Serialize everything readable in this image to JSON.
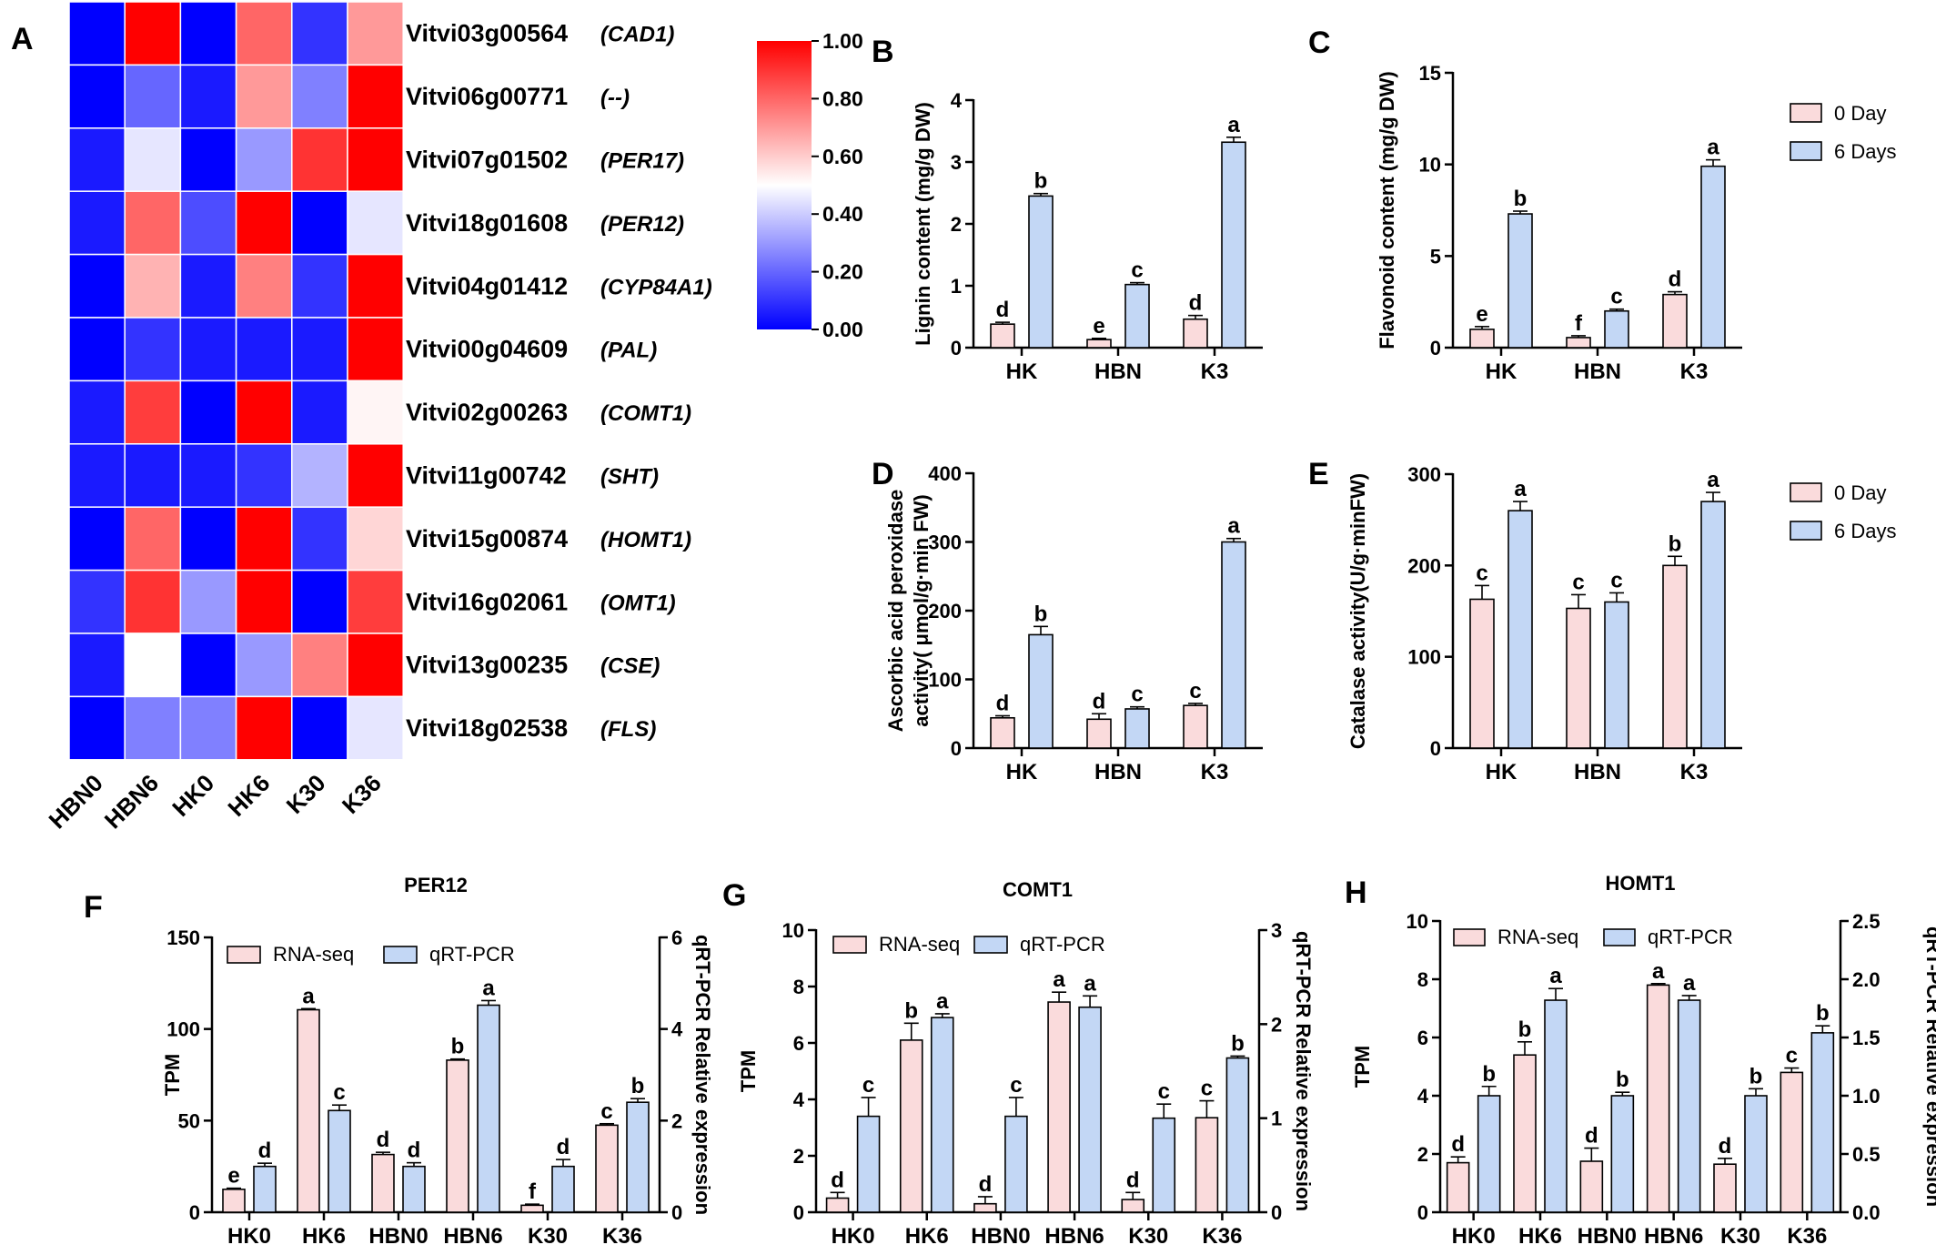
{
  "colors": {
    "low": "#0000ff",
    "mid": "#ffffff",
    "high": "#ff0000",
    "bar_0day": "#fadbdc",
    "bar_6days": "#c3d7f5",
    "bar_rnaseq": "#fadbdc",
    "bar_qrtpcr": "#c3d7f5"
  },
  "chart_data": [
    {
      "id": "A",
      "type": "heatmap",
      "letter": "A",
      "columns": [
        "HBN0",
        "HBN6",
        "HK0",
        "HK6",
        "K30",
        "K36"
      ],
      "rows": [
        {
          "gene": "Vitvi03g00564",
          "annotation": "(CAD1)",
          "values": [
            0.0,
            1.0,
            0.0,
            0.8,
            0.1,
            0.7
          ]
        },
        {
          "gene": "Vitvi06g00771",
          "annotation": "(--)",
          "values": [
            0.0,
            0.2,
            0.05,
            0.7,
            0.25,
            1.0
          ]
        },
        {
          "gene": "Vitvi07g01502",
          "annotation": "(PER17)",
          "values": [
            0.05,
            0.45,
            0.0,
            0.3,
            0.9,
            1.0
          ]
        },
        {
          "gene": "Vitvi18g01608",
          "annotation": "(PER12)",
          "values": [
            0.05,
            0.8,
            0.15,
            1.0,
            0.0,
            0.45
          ]
        },
        {
          "gene": "Vitvi04g01412",
          "annotation": "(CYP84A1)",
          "values": [
            0.0,
            0.65,
            0.05,
            0.75,
            0.1,
            1.0
          ]
        },
        {
          "gene": "Vitvi00g04609",
          "annotation": "(PAL)",
          "values": [
            0.0,
            0.1,
            0.05,
            0.05,
            0.05,
            1.0
          ]
        },
        {
          "gene": "Vitvi02g00263",
          "annotation": "(COMT1)",
          "values": [
            0.05,
            0.88,
            0.0,
            1.0,
            0.05,
            0.52
          ]
        },
        {
          "gene": "Vitvi11g00742",
          "annotation": "(SHT)",
          "values": [
            0.05,
            0.05,
            0.05,
            0.1,
            0.35,
            1.0
          ]
        },
        {
          "gene": "Vitvi15g00874",
          "annotation": "(HOMT1)",
          "values": [
            0.0,
            0.8,
            0.0,
            1.0,
            0.1,
            0.58
          ]
        },
        {
          "gene": "Vitvi16g02061",
          "annotation": "(OMT1)",
          "values": [
            0.1,
            0.9,
            0.3,
            1.0,
            0.0,
            0.88
          ]
        },
        {
          "gene": "Vitvi13g00235",
          "annotation": "(CSE)",
          "values": [
            0.05,
            0.5,
            0.0,
            0.3,
            0.75,
            1.0
          ]
        },
        {
          "gene": "Vitvi18g02538",
          "annotation": "(FLS)",
          "values": [
            0.0,
            0.25,
            0.25,
            1.0,
            0.0,
            0.45
          ]
        }
      ],
      "scale": {
        "min": 0.0,
        "max": 1.0,
        "ticks": [
          "0.00",
          "0.20",
          "0.40",
          "0.60",
          "0.80",
          "1.00"
        ]
      }
    },
    {
      "id": "B",
      "type": "bar",
      "letter": "B",
      "categories": [
        "HK",
        "HBN",
        "K3"
      ],
      "ylabel": "Lignin content (mg/g DW)",
      "ylim": [
        0,
        4
      ],
      "yticks": [
        0,
        1,
        2,
        3,
        4
      ],
      "ytick_labels": [
        "0",
        "1",
        "2",
        "3",
        "4"
      ],
      "series": [
        {
          "name": "0 Day",
          "values": [
            0.38,
            0.13,
            0.46
          ],
          "errors": [
            0.03,
            0.02,
            0.06
          ],
          "labels": [
            "d",
            "e",
            "d"
          ]
        },
        {
          "name": "6 Days",
          "values": [
            2.45,
            1.02,
            3.32
          ],
          "errors": [
            0.04,
            0.03,
            0.08
          ],
          "labels": [
            "b",
            "c",
            "a"
          ]
        }
      ]
    },
    {
      "id": "C",
      "type": "bar",
      "letter": "C",
      "categories": [
        "HK",
        "HBN",
        "K3"
      ],
      "ylabel": "Flavonoid content (mg/g DW)",
      "ylim": [
        0,
        15
      ],
      "yticks": [
        0,
        5,
        10,
        15
      ],
      "ytick_labels": [
        "0",
        "5",
        "10",
        "15"
      ],
      "legend": [
        "0 Day",
        "6 Days"
      ],
      "series": [
        {
          "name": "0 Day",
          "values": [
            1.0,
            0.55,
            2.9
          ],
          "errors": [
            0.15,
            0.1,
            0.15
          ],
          "labels": [
            "e",
            "f",
            "d"
          ]
        },
        {
          "name": "6 Days",
          "values": [
            7.3,
            2.0,
            9.9
          ],
          "errors": [
            0.15,
            0.1,
            0.35
          ],
          "labels": [
            "b",
            "c",
            "a"
          ]
        }
      ]
    },
    {
      "id": "D",
      "type": "bar",
      "letter": "D",
      "categories": [
        "HK",
        "HBN",
        "K3"
      ],
      "ylabel_lines": [
        "Ascorbic acid peroxidase",
        "activity( μmol/g·min FW)"
      ],
      "ylim": [
        0,
        400
      ],
      "yticks": [
        0,
        100,
        200,
        300,
        400
      ],
      "ytick_labels": [
        "0",
        "100",
        "200",
        "300",
        "400"
      ],
      "series": [
        {
          "name": "0 Day",
          "values": [
            44,
            42,
            62
          ],
          "errors": [
            3,
            8,
            3
          ],
          "labels": [
            "d",
            "d",
            "c"
          ]
        },
        {
          "name": "6 Days",
          "values": [
            165,
            57,
            300
          ],
          "errors": [
            12,
            3,
            5
          ],
          "labels": [
            "b",
            "c",
            "a"
          ]
        }
      ]
    },
    {
      "id": "E",
      "type": "bar",
      "letter": "E",
      "categories": [
        "HK",
        "HBN",
        "K3"
      ],
      "ylabel": "Catalase activity(U/g·minFW)",
      "ylim": [
        0,
        300
      ],
      "yticks": [
        0,
        100,
        200,
        300
      ],
      "ytick_labels": [
        "0",
        "100",
        "200",
        "300"
      ],
      "legend": [
        "0 Day",
        "6 Days"
      ],
      "series": [
        {
          "name": "0 Day",
          "values": [
            163,
            153,
            200
          ],
          "errors": [
            15,
            15,
            10
          ],
          "labels": [
            "c",
            "c",
            "b"
          ]
        },
        {
          "name": "6 Days",
          "values": [
            260,
            160,
            270
          ],
          "errors": [
            10,
            10,
            10
          ],
          "labels": [
            "a",
            "c",
            "a"
          ]
        }
      ]
    },
    {
      "id": "F",
      "type": "bar",
      "letter": "F",
      "title": "PER12",
      "categories": [
        "HK0",
        "HK6",
        "HBN0",
        "HBN6",
        "K30",
        "K36"
      ],
      "ylabel": "TPM",
      "ylabel_right": "qRT-PCR Relative expression",
      "ylim": [
        0,
        150
      ],
      "yticks": [
        0,
        50,
        100,
        150
      ],
      "ytick_labels": [
        "0",
        "50",
        "100",
        "150"
      ],
      "ylim_right": [
        0,
        6
      ],
      "yticks_right": [
        0,
        2,
        4,
        6
      ],
      "ytick_labels_right": [
        "0",
        "2",
        "4",
        "6"
      ],
      "legend": [
        "RNA-seq",
        "qRT-PCR"
      ],
      "series": [
        {
          "name": "RNA-seq",
          "axis": "left",
          "values": [
            12.5,
            110.5,
            31.5,
            83,
            3.8,
            47.5
          ],
          "errors": [
            0.6,
            0.6,
            1.2,
            0.6,
            0.6,
            0.8
          ],
          "labels": [
            "e",
            "a",
            "d",
            "b",
            "f",
            "c"
          ]
        },
        {
          "name": "qRT-PCR",
          "axis": "right",
          "values": [
            1.0,
            2.22,
            1.0,
            4.52,
            1.0,
            2.4
          ],
          "errors": [
            0.07,
            0.12,
            0.08,
            0.1,
            0.15,
            0.08
          ],
          "labels": [
            "d",
            "c",
            "d",
            "a",
            "d",
            "b"
          ]
        }
      ]
    },
    {
      "id": "G",
      "type": "bar",
      "letter": "G",
      "title": "COMT1",
      "categories": [
        "HK0",
        "HK6",
        "HBN0",
        "HBN6",
        "K30",
        "K36"
      ],
      "ylabel": "TPM",
      "ylabel_right": "qRT-PCR Relative expression",
      "ylim": [
        0,
        10
      ],
      "yticks": [
        0,
        2,
        4,
        6,
        8,
        10
      ],
      "ytick_labels": [
        "0",
        "2",
        "4",
        "6",
        "8",
        "10"
      ],
      "ylim_right": [
        0,
        3
      ],
      "yticks_right": [
        0,
        1,
        2,
        3
      ],
      "ytick_labels_right": [
        "0",
        "1",
        "2",
        "3"
      ],
      "legend": [
        "RNA-seq",
        "qRT-PCR"
      ],
      "series": [
        {
          "name": "RNA-seq",
          "axis": "left",
          "values": [
            0.5,
            6.1,
            0.3,
            7.45,
            0.45,
            3.35
          ],
          "errors": [
            0.2,
            0.6,
            0.25,
            0.35,
            0.25,
            0.6
          ],
          "labels": [
            "d",
            "b",
            "d",
            "a",
            "d",
            "c"
          ]
        },
        {
          "name": "qRT-PCR",
          "axis": "right",
          "values": [
            1.02,
            2.07,
            1.02,
            2.18,
            1.0,
            1.64
          ],
          "errors": [
            0.2,
            0.04,
            0.2,
            0.12,
            0.15,
            0.02
          ],
          "labels": [
            "c",
            "a",
            "c",
            "a",
            "c",
            "b"
          ]
        }
      ]
    },
    {
      "id": "H",
      "type": "bar",
      "letter": "H",
      "title": "HOMT1",
      "categories": [
        "HK0",
        "HK6",
        "HBN0",
        "HBN6",
        "K30",
        "K36"
      ],
      "ylabel": "TPM",
      "ylabel_right": "qRT-PCR Relative expression",
      "ylim": [
        0,
        10
      ],
      "yticks": [
        0,
        2,
        4,
        6,
        8,
        10
      ],
      "ytick_labels": [
        "0",
        "2",
        "4",
        "6",
        "8",
        "10"
      ],
      "ylim_right": [
        0,
        2.5
      ],
      "yticks_right": [
        0,
        0.5,
        1.0,
        1.5,
        2.0,
        2.5
      ],
      "ytick_labels_right": [
        "0.0",
        "0.5",
        "1.0",
        "1.5",
        "2.0",
        "2.5"
      ],
      "legend": [
        "RNA-seq",
        "qRT-PCR"
      ],
      "series": [
        {
          "name": "RNA-seq",
          "axis": "left",
          "values": [
            1.7,
            5.4,
            1.75,
            7.8,
            1.65,
            4.8
          ],
          "errors": [
            0.2,
            0.45,
            0.45,
            0.05,
            0.2,
            0.15
          ],
          "labels": [
            "d",
            "b",
            "d",
            "a",
            "d",
            "c"
          ]
        },
        {
          "name": "qRT-PCR",
          "axis": "right",
          "values": [
            1.0,
            1.82,
            1.0,
            1.82,
            1.0,
            1.54
          ],
          "errors": [
            0.08,
            0.1,
            0.03,
            0.04,
            0.06,
            0.06
          ],
          "labels": [
            "b",
            "a",
            "b",
            "a",
            "b",
            "b"
          ]
        }
      ]
    }
  ]
}
